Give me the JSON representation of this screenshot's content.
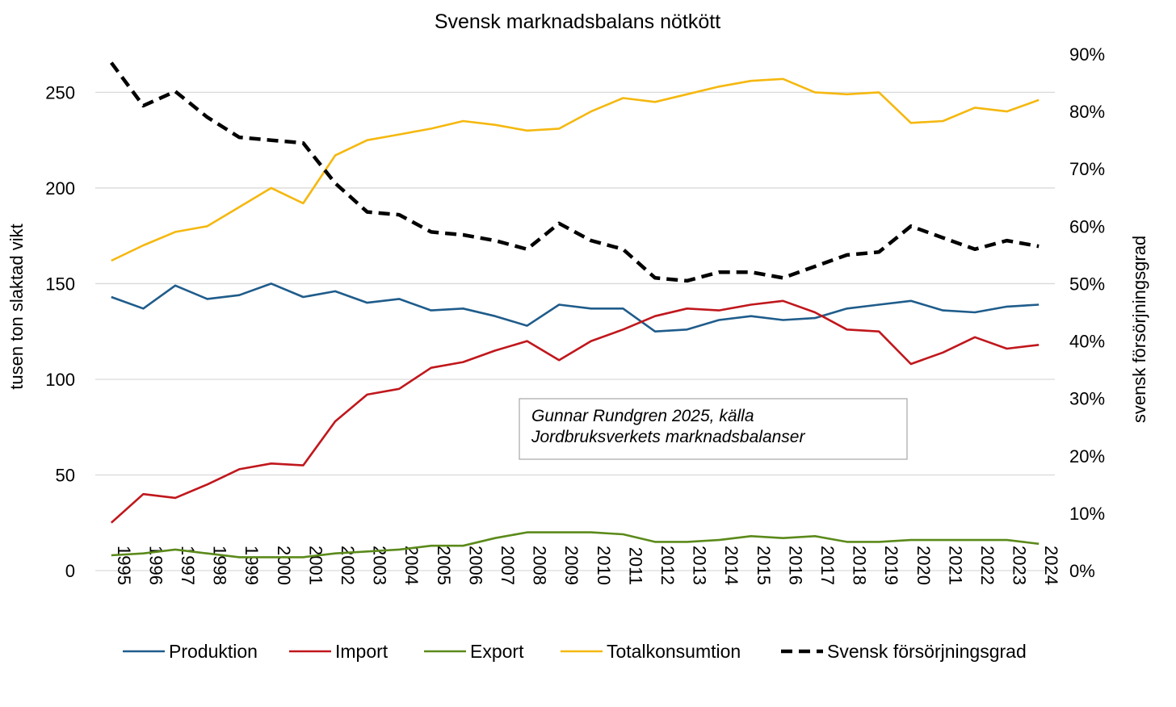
{
  "chart_data": {
    "type": "line",
    "title": "Svensk marknadsbalans  nötkött",
    "ylabel_left": "tusen ton slaktad vikt",
    "ylabel_right": "svensk försörjningsgrad",
    "ylim_left": [
      0,
      270
    ],
    "yticks_left": [
      "0",
      "50",
      "100",
      "150",
      "200",
      "250"
    ],
    "ylim_right": [
      0,
      0.9
    ],
    "yticks_right": [
      "0%",
      "10%",
      "20%",
      "30%",
      "40%",
      "50%",
      "60%",
      "70%",
      "80%",
      "90%"
    ],
    "grid": "horizontal",
    "legend_position": "bottom",
    "x": [
      "1995",
      "1996",
      "1997",
      "1998",
      "1999",
      "2000",
      "2001",
      "2002",
      "2003",
      "2004",
      "2005",
      "2006",
      "2007",
      "2008",
      "2009",
      "2010",
      "2011",
      "2012",
      "2013",
      "2014",
      "2015",
      "2016",
      "2017",
      "2018",
      "2019",
      "2020",
      "2021",
      "2022",
      "2023",
      "2024"
    ],
    "series": [
      {
        "name": "Produktion",
        "axis": "left",
        "color": "#1f5c8b",
        "dash": "solid",
        "values": [
          143,
          137,
          149,
          142,
          144,
          150,
          143,
          146,
          140,
          142,
          136,
          137,
          133,
          128,
          139,
          137,
          137,
          125,
          126,
          131,
          133,
          131,
          132,
          137,
          139,
          141,
          136,
          135,
          138,
          139
        ]
      },
      {
        "name": "Import",
        "axis": "left",
        "color": "#c0171c",
        "dash": "solid",
        "values": [
          25,
          40,
          38,
          45,
          53,
          56,
          55,
          78,
          92,
          95,
          106,
          109,
          115,
          120,
          110,
          120,
          126,
          133,
          137,
          136,
          139,
          141,
          135,
          126,
          125,
          108,
          114,
          122,
          116,
          118
        ]
      },
      {
        "name": "Export",
        "axis": "left",
        "color": "#5b8a1a",
        "dash": "solid",
        "values": [
          8,
          9,
          11,
          9,
          7,
          7,
          7,
          9,
          10,
          11,
          13,
          13,
          17,
          20,
          20,
          20,
          19,
          15,
          15,
          16,
          18,
          17,
          18,
          15,
          15,
          16,
          16,
          16,
          16,
          14
        ]
      },
      {
        "name": "Totalkonsumtion",
        "axis": "left",
        "color": "#f5b80f",
        "dash": "solid",
        "values": [
          162,
          170,
          177,
          180,
          190,
          200,
          192,
          217,
          225,
          228,
          231,
          235,
          233,
          230,
          231,
          240,
          247,
          245,
          249,
          253,
          256,
          257,
          250,
          249,
          250,
          234,
          235,
          242,
          240,
          246
        ]
      },
      {
        "name": "Svensk försörjningsgrad",
        "axis": "right",
        "color": "#000000",
        "dash": "dashed",
        "values": [
          0.885,
          0.81,
          0.835,
          0.79,
          0.755,
          0.75,
          0.745,
          0.675,
          0.625,
          0.62,
          0.59,
          0.585,
          0.575,
          0.56,
          0.605,
          0.575,
          0.56,
          0.51,
          0.505,
          0.52,
          0.52,
          0.51,
          0.53,
          0.55,
          0.555,
          0.6,
          0.58,
          0.56,
          0.575,
          0.565
        ]
      }
    ],
    "annotation": [
      "Gunnar Rundgren 2025, källa",
      "Jordbruksverkets marknadsbalanser"
    ]
  }
}
